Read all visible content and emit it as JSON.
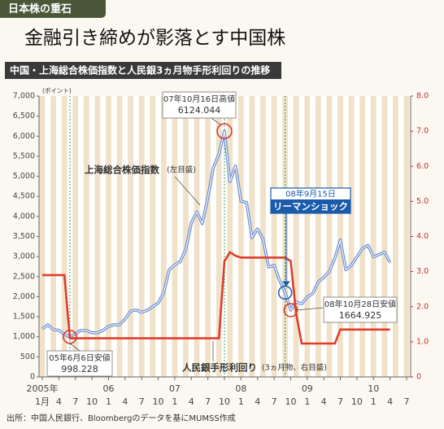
{
  "chart_data": {
    "type": "line",
    "tag": "日本株の重石",
    "title": "金融引き締めが影落とす中国株",
    "subtitle": "中国・上海総合株価指数と人民銀3ヵ月物手形利回りの推移",
    "y_unit": "(ポイント)",
    "source": "出所：中国人民銀行、Bloombergのデータを基にMUMSS作成",
    "x": [
      "2005-01",
      "2005-02",
      "2005-03",
      "2005-04",
      "2005-05",
      "2005-06",
      "2005-07",
      "2005-08",
      "2005-09",
      "2005-10",
      "2005-11",
      "2005-12",
      "2006-01",
      "2006-02",
      "2006-03",
      "2006-04",
      "2006-05",
      "2006-06",
      "2006-07",
      "2006-08",
      "2006-09",
      "2006-10",
      "2006-11",
      "2006-12",
      "2007-01",
      "2007-02",
      "2007-03",
      "2007-04",
      "2007-05",
      "2007-06",
      "2007-07",
      "2007-08",
      "2007-09",
      "2007-10",
      "2007-11",
      "2007-12",
      "2008-01",
      "2008-02",
      "2008-03",
      "2008-04",
      "2008-05",
      "2008-06",
      "2008-07",
      "2008-08",
      "2008-09",
      "2008-10",
      "2008-11",
      "2008-12",
      "2009-01",
      "2009-02",
      "2009-03",
      "2009-04",
      "2009-05",
      "2009-06",
      "2009-07",
      "2009-08",
      "2009-09",
      "2009-10",
      "2009-11",
      "2009-12",
      "2010-01",
      "2010-02",
      "2010-03",
      "2010-04"
    ],
    "xlim": [
      "2005-01",
      "2010-07"
    ],
    "xticks": [
      {
        "value": "2005-01",
        "label": "1月"
      },
      {
        "value": "2005-04",
        "label": "4"
      },
      {
        "value": "2005-07",
        "label": "7"
      },
      {
        "value": "2005-10",
        "label": "10"
      },
      {
        "value": "2006-01",
        "label": "1"
      },
      {
        "value": "2006-04",
        "label": "4"
      },
      {
        "value": "2006-07",
        "label": "7"
      },
      {
        "value": "2006-10",
        "label": "10"
      },
      {
        "value": "2007-01",
        "label": "1"
      },
      {
        "value": "2007-04",
        "label": "4"
      },
      {
        "value": "2007-07",
        "label": "7"
      },
      {
        "value": "2007-10",
        "label": "10"
      },
      {
        "value": "2008-01",
        "label": "1"
      },
      {
        "value": "2008-04",
        "label": "4"
      },
      {
        "value": "2008-07",
        "label": "7"
      },
      {
        "value": "2008-10",
        "label": "10"
      },
      {
        "value": "2009-01",
        "label": "1"
      },
      {
        "value": "2009-04",
        "label": "4"
      },
      {
        "value": "2009-07",
        "label": "7"
      },
      {
        "value": "2009-10",
        "label": "10"
      },
      {
        "value": "2010-01",
        "label": "1"
      },
      {
        "value": "2010-04",
        "label": "4"
      },
      {
        "value": "2010-07",
        "label": "7"
      }
    ],
    "year_labels": [
      {
        "value": "2005-01",
        "label": "2005年"
      },
      {
        "value": "2006-01",
        "label": "06"
      },
      {
        "value": "2007-01",
        "label": "07"
      },
      {
        "value": "2008-01",
        "label": "08"
      },
      {
        "value": "2009-01",
        "label": "09"
      },
      {
        "value": "2010-01",
        "label": "10"
      }
    ],
    "ylim": [
      0,
      7000
    ],
    "yticks": [
      0,
      500,
      {
        "value": 1000,
        "label": "1,000"
      },
      {
        "value": 1500,
        "label": "1,500"
      },
      {
        "value": 2000,
        "label": "2,000"
      },
      {
        "value": 2500,
        "label": "2,500"
      },
      {
        "value": 3000,
        "label": "3,000"
      },
      {
        "value": 3500,
        "label": "3,500"
      },
      {
        "value": 4000,
        "label": "4,000"
      },
      {
        "value": 4500,
        "label": "4,500"
      },
      {
        "value": 5000,
        "label": "5,000"
      },
      {
        "value": 5500,
        "label": "5,500"
      },
      {
        "value": 6000,
        "label": "6,000"
      },
      {
        "value": 6500,
        "label": "6,500"
      },
      {
        "value": 7000,
        "label": "7,000"
      }
    ],
    "y2lim": [
      0,
      8
    ],
    "y2ticks": [
      0,
      {
        "value": 1,
        "label": "1.0"
      },
      {
        "value": 2,
        "label": "2.0"
      },
      {
        "value": 3,
        "label": "3.0"
      },
      {
        "value": 4,
        "label": "4.0"
      },
      {
        "value": 5,
        "label": "5.0"
      },
      {
        "value": 6,
        "label": "6.0"
      },
      {
        "value": 7,
        "label": "7.0"
      },
      {
        "value": 8,
        "label": "8.0"
      }
    ],
    "series": [
      {
        "name": "上海総合株価指数",
        "note": "(左目盛)",
        "color": "#6f8fcf",
        "values": [
          1190,
          1300,
          1180,
          1160,
          1060,
          998.228,
          1080,
          1160,
          1155,
          1100,
          1100,
          1160,
          1260,
          1300,
          1300,
          1440,
          1640,
          1670,
          1610,
          1660,
          1750,
          1840,
          2100,
          2675,
          2790,
          2880,
          3180,
          3840,
          4110,
          3820,
          4470,
          5220,
          5550,
          6124.044,
          4870,
          5260,
          4380,
          4350,
          3470,
          3690,
          3430,
          2740,
          2780,
          2400,
          2100,
          1664.925,
          1870,
          1820,
          1990,
          2080,
          2370,
          2480,
          2630,
          2960,
          3410,
          2670,
          2780,
          2990,
          3200,
          3280,
          2990,
          3050,
          3110,
          2850
        ]
      },
      {
        "name": "人民銀手形利回り",
        "note": "(3ヵ月物、右目盛)",
        "color": "#e03c2c",
        "axis": "y2",
        "values": [
          2.9,
          2.9,
          2.9,
          2.9,
          2.9,
          1.1,
          1.1,
          1.1,
          1.1,
          1.1,
          1.1,
          1.1,
          1.1,
          1.1,
          1.1,
          1.1,
          1.1,
          1.1,
          1.1,
          1.1,
          1.1,
          1.1,
          1.1,
          1.1,
          1.1,
          1.1,
          1.1,
          1.1,
          1.1,
          1.1,
          1.1,
          1.1,
          1.1,
          3.3,
          3.55,
          3.45,
          3.4,
          3.4,
          3.4,
          3.4,
          3.4,
          3.4,
          3.4,
          3.4,
          3.4,
          3.3,
          1.8,
          0.95,
          0.95,
          0.95,
          0.95,
          0.95,
          0.95,
          0.95,
          1.35,
          1.35,
          1.35,
          1.35,
          1.35,
          1.35,
          1.35,
          1.35,
          1.35,
          1.35
        ]
      }
    ],
    "annotations": [
      {
        "label": "07年10月16日高値",
        "value": "6124.044"
      },
      {
        "label": "05年6月6日安値",
        "value": "998.228"
      },
      {
        "label": "08年10月28日安値",
        "value": "1664.925"
      },
      {
        "label": "08年9月15日",
        "value": "リーマンショック"
      }
    ]
  }
}
